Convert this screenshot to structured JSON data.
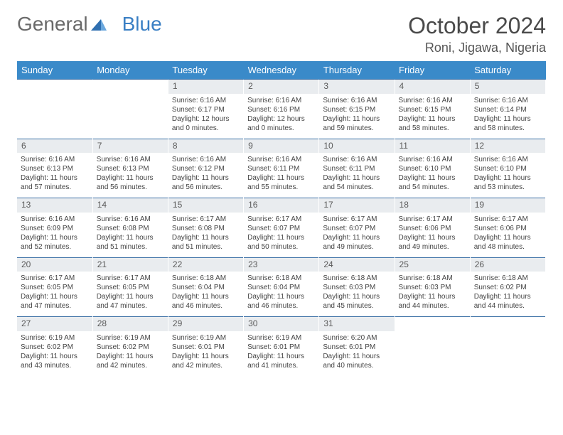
{
  "brand": {
    "part1": "General",
    "part2": "Blue"
  },
  "title": "October 2024",
  "location": "Roni, Jigawa, Nigeria",
  "header_color": "#3a8ac9",
  "daynum_bg": "#e9ecef",
  "row_border": "#3a6fa5",
  "weekdays": [
    "Sunday",
    "Monday",
    "Tuesday",
    "Wednesday",
    "Thursday",
    "Friday",
    "Saturday"
  ],
  "weeks": [
    [
      {
        "n": "",
        "sr": "",
        "ss": "",
        "dl": ""
      },
      {
        "n": "",
        "sr": "",
        "ss": "",
        "dl": ""
      },
      {
        "n": "1",
        "sr": "Sunrise: 6:16 AM",
        "ss": "Sunset: 6:17 PM",
        "dl": "Daylight: 12 hours and 0 minutes."
      },
      {
        "n": "2",
        "sr": "Sunrise: 6:16 AM",
        "ss": "Sunset: 6:16 PM",
        "dl": "Daylight: 12 hours and 0 minutes."
      },
      {
        "n": "3",
        "sr": "Sunrise: 6:16 AM",
        "ss": "Sunset: 6:15 PM",
        "dl": "Daylight: 11 hours and 59 minutes."
      },
      {
        "n": "4",
        "sr": "Sunrise: 6:16 AM",
        "ss": "Sunset: 6:15 PM",
        "dl": "Daylight: 11 hours and 58 minutes."
      },
      {
        "n": "5",
        "sr": "Sunrise: 6:16 AM",
        "ss": "Sunset: 6:14 PM",
        "dl": "Daylight: 11 hours and 58 minutes."
      }
    ],
    [
      {
        "n": "6",
        "sr": "Sunrise: 6:16 AM",
        "ss": "Sunset: 6:13 PM",
        "dl": "Daylight: 11 hours and 57 minutes."
      },
      {
        "n": "7",
        "sr": "Sunrise: 6:16 AM",
        "ss": "Sunset: 6:13 PM",
        "dl": "Daylight: 11 hours and 56 minutes."
      },
      {
        "n": "8",
        "sr": "Sunrise: 6:16 AM",
        "ss": "Sunset: 6:12 PM",
        "dl": "Daylight: 11 hours and 56 minutes."
      },
      {
        "n": "9",
        "sr": "Sunrise: 6:16 AM",
        "ss": "Sunset: 6:11 PM",
        "dl": "Daylight: 11 hours and 55 minutes."
      },
      {
        "n": "10",
        "sr": "Sunrise: 6:16 AM",
        "ss": "Sunset: 6:11 PM",
        "dl": "Daylight: 11 hours and 54 minutes."
      },
      {
        "n": "11",
        "sr": "Sunrise: 6:16 AM",
        "ss": "Sunset: 6:10 PM",
        "dl": "Daylight: 11 hours and 54 minutes."
      },
      {
        "n": "12",
        "sr": "Sunrise: 6:16 AM",
        "ss": "Sunset: 6:10 PM",
        "dl": "Daylight: 11 hours and 53 minutes."
      }
    ],
    [
      {
        "n": "13",
        "sr": "Sunrise: 6:16 AM",
        "ss": "Sunset: 6:09 PM",
        "dl": "Daylight: 11 hours and 52 minutes."
      },
      {
        "n": "14",
        "sr": "Sunrise: 6:16 AM",
        "ss": "Sunset: 6:08 PM",
        "dl": "Daylight: 11 hours and 51 minutes."
      },
      {
        "n": "15",
        "sr": "Sunrise: 6:17 AM",
        "ss": "Sunset: 6:08 PM",
        "dl": "Daylight: 11 hours and 51 minutes."
      },
      {
        "n": "16",
        "sr": "Sunrise: 6:17 AM",
        "ss": "Sunset: 6:07 PM",
        "dl": "Daylight: 11 hours and 50 minutes."
      },
      {
        "n": "17",
        "sr": "Sunrise: 6:17 AM",
        "ss": "Sunset: 6:07 PM",
        "dl": "Daylight: 11 hours and 49 minutes."
      },
      {
        "n": "18",
        "sr": "Sunrise: 6:17 AM",
        "ss": "Sunset: 6:06 PM",
        "dl": "Daylight: 11 hours and 49 minutes."
      },
      {
        "n": "19",
        "sr": "Sunrise: 6:17 AM",
        "ss": "Sunset: 6:06 PM",
        "dl": "Daylight: 11 hours and 48 minutes."
      }
    ],
    [
      {
        "n": "20",
        "sr": "Sunrise: 6:17 AM",
        "ss": "Sunset: 6:05 PM",
        "dl": "Daylight: 11 hours and 47 minutes."
      },
      {
        "n": "21",
        "sr": "Sunrise: 6:17 AM",
        "ss": "Sunset: 6:05 PM",
        "dl": "Daylight: 11 hours and 47 minutes."
      },
      {
        "n": "22",
        "sr": "Sunrise: 6:18 AM",
        "ss": "Sunset: 6:04 PM",
        "dl": "Daylight: 11 hours and 46 minutes."
      },
      {
        "n": "23",
        "sr": "Sunrise: 6:18 AM",
        "ss": "Sunset: 6:04 PM",
        "dl": "Daylight: 11 hours and 46 minutes."
      },
      {
        "n": "24",
        "sr": "Sunrise: 6:18 AM",
        "ss": "Sunset: 6:03 PM",
        "dl": "Daylight: 11 hours and 45 minutes."
      },
      {
        "n": "25",
        "sr": "Sunrise: 6:18 AM",
        "ss": "Sunset: 6:03 PM",
        "dl": "Daylight: 11 hours and 44 minutes."
      },
      {
        "n": "26",
        "sr": "Sunrise: 6:18 AM",
        "ss": "Sunset: 6:02 PM",
        "dl": "Daylight: 11 hours and 44 minutes."
      }
    ],
    [
      {
        "n": "27",
        "sr": "Sunrise: 6:19 AM",
        "ss": "Sunset: 6:02 PM",
        "dl": "Daylight: 11 hours and 43 minutes."
      },
      {
        "n": "28",
        "sr": "Sunrise: 6:19 AM",
        "ss": "Sunset: 6:02 PM",
        "dl": "Daylight: 11 hours and 42 minutes."
      },
      {
        "n": "29",
        "sr": "Sunrise: 6:19 AM",
        "ss": "Sunset: 6:01 PM",
        "dl": "Daylight: 11 hours and 42 minutes."
      },
      {
        "n": "30",
        "sr": "Sunrise: 6:19 AM",
        "ss": "Sunset: 6:01 PM",
        "dl": "Daylight: 11 hours and 41 minutes."
      },
      {
        "n": "31",
        "sr": "Sunrise: 6:20 AM",
        "ss": "Sunset: 6:01 PM",
        "dl": "Daylight: 11 hours and 40 minutes."
      },
      {
        "n": "",
        "sr": "",
        "ss": "",
        "dl": ""
      },
      {
        "n": "",
        "sr": "",
        "ss": "",
        "dl": ""
      }
    ]
  ]
}
